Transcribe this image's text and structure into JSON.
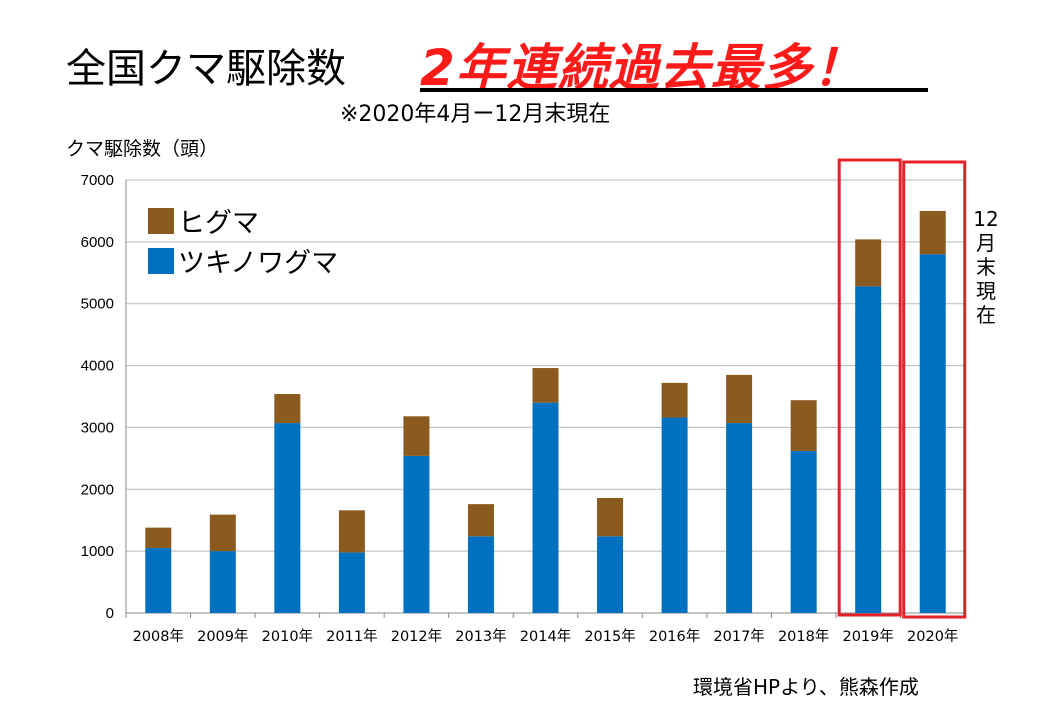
{
  "title": "全国クマ駆除数",
  "headline": "2年連続過去最多！",
  "subtitle": "※2020年4月ー12月末現在",
  "source": "環境省HPより、熊森作成",
  "vertical_note": "12月末現在",
  "colors": {
    "brown_bear": "#8b5a1f",
    "asian_black_bear": "#0070c0",
    "highlight": "#e8202a",
    "headline": "#ff1a1a"
  },
  "chart_data": {
    "type": "bar",
    "stacked": true,
    "title": "",
    "xlabel": "",
    "ylabel": "クマ駆除数（頭）",
    "categories": [
      "2008年",
      "2009年",
      "2010年",
      "2011年",
      "2012年",
      "2013年",
      "2014年",
      "2015年",
      "2016年",
      "2017年",
      "2018年",
      "2019年",
      "2020年"
    ],
    "series": [
      {
        "name": "ツキノワグマ",
        "color": "#0070c0",
        "values": [
          1050,
          1000,
          3070,
          980,
          2540,
          1240,
          3400,
          1240,
          3160,
          3070,
          2620,
          5280,
          5800
        ]
      },
      {
        "name": "ヒグマ",
        "color": "#8b5a1f",
        "values": [
          330,
          590,
          470,
          680,
          640,
          520,
          560,
          620,
          560,
          780,
          820,
          760,
          700
        ]
      }
    ],
    "ylim": [
      0,
      7000
    ],
    "yticks": [
      0,
      1000,
      2000,
      3000,
      4000,
      5000,
      6000,
      7000
    ],
    "grid": true,
    "legend_position": "top-left",
    "highlighted_categories": [
      "2019年",
      "2020年"
    ]
  }
}
